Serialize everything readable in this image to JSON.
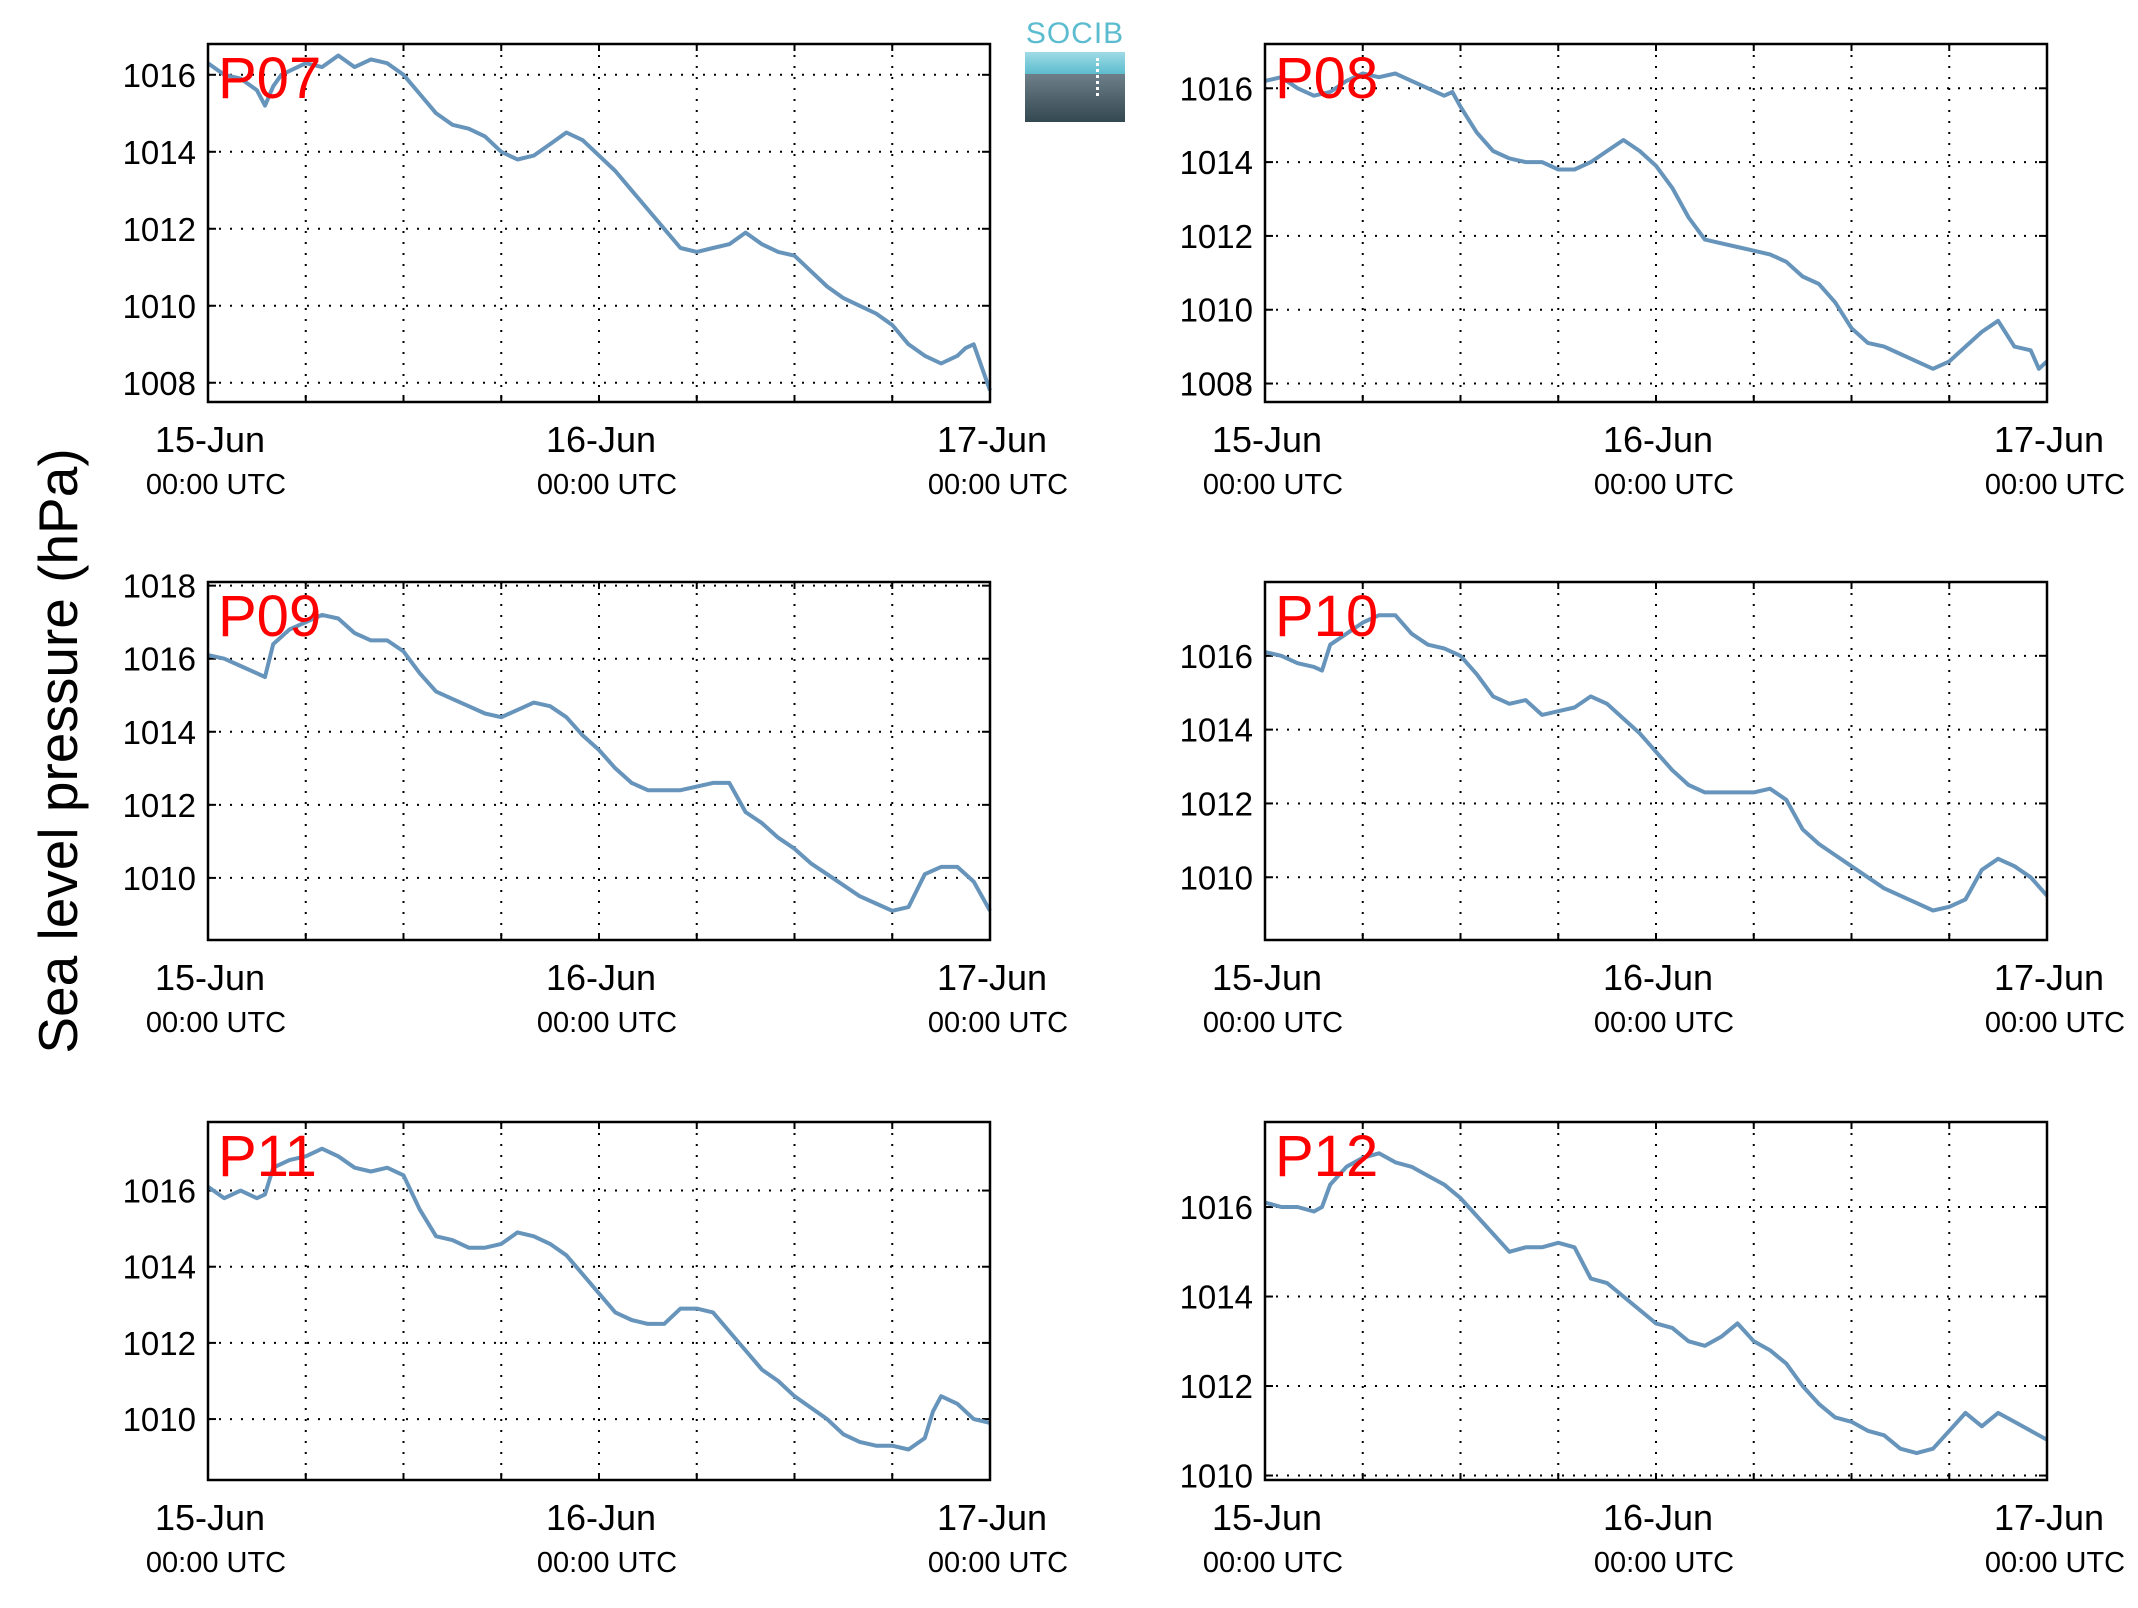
{
  "figure": {
    "ylabel": "Sea level pressure (hPa)",
    "logo_text": "SOCIB",
    "line_color": "#6794bb",
    "panel_label_color": "#ff0000"
  },
  "chart_data": [
    {
      "type": "line",
      "panel_label": "P07",
      "x_ticks": [
        {
          "line1": "15-Jun",
          "line2": "00:00 UTC"
        },
        {
          "line1": "16-Jun",
          "line2": "00:00 UTC"
        },
        {
          "line1": "17-Jun",
          "line2": "00:00 UTC"
        }
      ],
      "xlim_hours": [
        0,
        48
      ],
      "ylim": [
        1007.5,
        1016.8
      ],
      "yticks": [
        1008,
        1010,
        1012,
        1014,
        1016
      ],
      "grid": true,
      "series": [
        {
          "x_hours": [
            0,
            1,
            2,
            3,
            3.5,
            4,
            4.5,
            5,
            6,
            7,
            8,
            9,
            10,
            11,
            12,
            13,
            14,
            15,
            16,
            17,
            18,
            19,
            20,
            21,
            22,
            23,
            24,
            25,
            26,
            27,
            28,
            29,
            30,
            31,
            32,
            33,
            34,
            35,
            36,
            37,
            38,
            39,
            40,
            41,
            42,
            43,
            44,
            45,
            46,
            46.5,
            47,
            48
          ],
          "y": [
            1016.3,
            1016.0,
            1015.9,
            1015.6,
            1015.2,
            1015.7,
            1016.0,
            1016.1,
            1016.3,
            1016.2,
            1016.5,
            1016.2,
            1016.4,
            1016.3,
            1016.0,
            1015.5,
            1015.0,
            1014.7,
            1014.6,
            1014.4,
            1014.0,
            1013.8,
            1013.9,
            1014.2,
            1014.5,
            1014.3,
            1013.9,
            1013.5,
            1013.0,
            1012.5,
            1012.0,
            1011.5,
            1011.4,
            1011.5,
            1011.6,
            1011.9,
            1011.6,
            1011.4,
            1011.3,
            1010.9,
            1010.5,
            1010.2,
            1010.0,
            1009.8,
            1009.5,
            1009.0,
            1008.7,
            1008.5,
            1008.7,
            1008.9,
            1009.0,
            1007.8
          ]
        }
      ]
    },
    {
      "type": "line",
      "panel_label": "P08",
      "x_ticks": [
        {
          "line1": "15-Jun",
          "line2": "00:00 UTC"
        },
        {
          "line1": "16-Jun",
          "line2": "00:00 UTC"
        },
        {
          "line1": "17-Jun",
          "line2": "00:00 UTC"
        }
      ],
      "xlim_hours": [
        0,
        48
      ],
      "ylim": [
        1007.5,
        1017.2
      ],
      "yticks": [
        1008,
        1010,
        1012,
        1014,
        1016
      ],
      "grid": true,
      "series": [
        {
          "x_hours": [
            0,
            1,
            2,
            3,
            4,
            5,
            6,
            7,
            8,
            9,
            10,
            11,
            11.5,
            12,
            13,
            14,
            15,
            16,
            17,
            18,
            19,
            20,
            21,
            22,
            23,
            24,
            25,
            26,
            27,
            28,
            29,
            30,
            31,
            32,
            33,
            34,
            35,
            36,
            37,
            38,
            39,
            40,
            41,
            42,
            43,
            44,
            45,
            46,
            47,
            47.5,
            48
          ],
          "y": [
            1016.2,
            1016.3,
            1016.0,
            1015.8,
            1015.9,
            1016.2,
            1016.4,
            1016.3,
            1016.4,
            1016.2,
            1016.0,
            1015.8,
            1015.9,
            1015.5,
            1014.8,
            1014.3,
            1014.1,
            1014.0,
            1014.0,
            1013.8,
            1013.8,
            1014.0,
            1014.3,
            1014.6,
            1014.3,
            1013.9,
            1013.3,
            1012.5,
            1011.9,
            1011.8,
            1011.7,
            1011.6,
            1011.5,
            1011.3,
            1010.9,
            1010.7,
            1010.2,
            1009.5,
            1009.1,
            1009.0,
            1008.8,
            1008.6,
            1008.4,
            1008.6,
            1009.0,
            1009.4,
            1009.7,
            1009.0,
            1008.9,
            1008.4,
            1008.6
          ]
        }
      ]
    },
    {
      "type": "line",
      "panel_label": "P09",
      "x_ticks": [
        {
          "line1": "15-Jun",
          "line2": "00:00 UTC"
        },
        {
          "line1": "16-Jun",
          "line2": "00:00 UTC"
        },
        {
          "line1": "17-Jun",
          "line2": "00:00 UTC"
        }
      ],
      "xlim_hours": [
        0,
        48
      ],
      "ylim": [
        1008.3,
        1018.1
      ],
      "yticks": [
        1010,
        1012,
        1014,
        1016,
        1018
      ],
      "grid": true,
      "series": [
        {
          "x_hours": [
            0,
            1,
            2,
            3,
            3.5,
            4,
            5,
            6,
            7,
            8,
            9,
            10,
            11,
            12,
            13,
            14,
            15,
            16,
            17,
            18,
            19,
            20,
            21,
            22,
            23,
            24,
            25,
            26,
            27,
            28,
            29,
            30,
            31,
            32,
            33,
            34,
            35,
            36,
            37,
            38,
            39,
            40,
            41,
            42,
            43,
            44,
            45,
            46,
            47,
            48
          ],
          "y": [
            1016.1,
            1016.0,
            1015.8,
            1015.6,
            1015.5,
            1016.4,
            1016.8,
            1017.0,
            1017.2,
            1017.1,
            1016.7,
            1016.5,
            1016.5,
            1016.2,
            1015.6,
            1015.1,
            1014.9,
            1014.7,
            1014.5,
            1014.4,
            1014.6,
            1014.8,
            1014.7,
            1014.4,
            1013.9,
            1013.5,
            1013.0,
            1012.6,
            1012.4,
            1012.4,
            1012.4,
            1012.5,
            1012.6,
            1012.6,
            1011.8,
            1011.5,
            1011.1,
            1010.8,
            1010.4,
            1010.1,
            1009.8,
            1009.5,
            1009.3,
            1009.1,
            1009.2,
            1010.1,
            1010.3,
            1010.3,
            1009.9,
            1009.1
          ]
        }
      ]
    },
    {
      "type": "line",
      "panel_label": "P10",
      "x_ticks": [
        {
          "line1": "15-Jun",
          "line2": "00:00 UTC"
        },
        {
          "line1": "16-Jun",
          "line2": "00:00 UTC"
        },
        {
          "line1": "17-Jun",
          "line2": "00:00 UTC"
        }
      ],
      "xlim_hours": [
        0,
        48
      ],
      "ylim": [
        1008.3,
        1018.0
      ],
      "yticks": [
        1010,
        1012,
        1014,
        1016
      ],
      "grid": true,
      "series": [
        {
          "x_hours": [
            0,
            1,
            2,
            3,
            3.5,
            4,
            5,
            6,
            7,
            8,
            9,
            10,
            11,
            12,
            13,
            14,
            15,
            16,
            17,
            18,
            19,
            20,
            21,
            22,
            23,
            24,
            25,
            26,
            27,
            28,
            29,
            30,
            31,
            32,
            33,
            34,
            35,
            36,
            37,
            38,
            39,
            40,
            41,
            42,
            43,
            44,
            45,
            46,
            47,
            48
          ],
          "y": [
            1016.1,
            1016.0,
            1015.8,
            1015.7,
            1015.6,
            1016.3,
            1016.6,
            1016.9,
            1017.1,
            1017.1,
            1016.6,
            1016.3,
            1016.2,
            1016.0,
            1015.5,
            1014.9,
            1014.7,
            1014.8,
            1014.4,
            1014.5,
            1014.6,
            1014.9,
            1014.7,
            1014.3,
            1013.9,
            1013.4,
            1012.9,
            1012.5,
            1012.3,
            1012.3,
            1012.3,
            1012.3,
            1012.4,
            1012.1,
            1011.3,
            1010.9,
            1010.6,
            1010.3,
            1010.0,
            1009.7,
            1009.5,
            1009.3,
            1009.1,
            1009.2,
            1009.4,
            1010.2,
            1010.5,
            1010.3,
            1010.0,
            1009.5
          ]
        }
      ]
    },
    {
      "type": "line",
      "panel_label": "P11",
      "x_ticks": [
        {
          "line1": "15-Jun",
          "line2": "00:00 UTC"
        },
        {
          "line1": "16-Jun",
          "line2": "00:00 UTC"
        },
        {
          "line1": "17-Jun",
          "line2": "00:00 UTC"
        }
      ],
      "xlim_hours": [
        0,
        48
      ],
      "ylim": [
        1008.4,
        1017.8
      ],
      "yticks": [
        1010,
        1012,
        1014,
        1016
      ],
      "grid": true,
      "series": [
        {
          "x_hours": [
            0,
            1,
            2,
            3,
            3.5,
            4,
            5,
            6,
            7,
            8,
            9,
            10,
            11,
            12,
            13,
            14,
            15,
            16,
            17,
            18,
            19,
            20,
            21,
            22,
            23,
            24,
            25,
            26,
            27,
            28,
            29,
            30,
            31,
            32,
            33,
            34,
            35,
            36,
            37,
            38,
            39,
            40,
            41,
            42,
            43,
            44,
            44.5,
            45,
            46,
            47,
            48
          ],
          "y": [
            1016.1,
            1015.8,
            1016.0,
            1015.8,
            1015.9,
            1016.6,
            1016.8,
            1016.9,
            1017.1,
            1016.9,
            1016.6,
            1016.5,
            1016.6,
            1016.4,
            1015.5,
            1014.8,
            1014.7,
            1014.5,
            1014.5,
            1014.6,
            1014.9,
            1014.8,
            1014.6,
            1014.3,
            1013.8,
            1013.3,
            1012.8,
            1012.6,
            1012.5,
            1012.5,
            1012.9,
            1012.9,
            1012.8,
            1012.3,
            1011.8,
            1011.3,
            1011.0,
            1010.6,
            1010.3,
            1010.0,
            1009.6,
            1009.4,
            1009.3,
            1009.3,
            1009.2,
            1009.5,
            1010.2,
            1010.6,
            1010.4,
            1010.0,
            1009.9
          ]
        }
      ]
    },
    {
      "type": "line",
      "panel_label": "P12",
      "x_ticks": [
        {
          "line1": "15-Jun",
          "line2": "00:00 UTC"
        },
        {
          "line1": "16-Jun",
          "line2": "00:00 UTC"
        },
        {
          "line1": "17-Jun",
          "line2": "00:00 UTC"
        }
      ],
      "xlim_hours": [
        0,
        48
      ],
      "ylim": [
        1009.9,
        1017.9
      ],
      "yticks": [
        1010,
        1012,
        1014,
        1016
      ],
      "grid": true,
      "series": [
        {
          "x_hours": [
            0,
            1,
            2,
            3,
            3.5,
            4,
            5,
            6,
            7,
            8,
            9,
            10,
            11,
            12,
            13,
            14,
            15,
            16,
            17,
            18,
            19,
            20,
            21,
            22,
            23,
            24,
            25,
            26,
            27,
            28,
            29,
            30,
            31,
            32,
            33,
            34,
            35,
            36,
            37,
            38,
            39,
            40,
            41,
            42,
            43,
            44,
            45,
            46,
            47,
            48
          ],
          "y": [
            1016.1,
            1016.0,
            1016.0,
            1015.9,
            1016.0,
            1016.5,
            1016.9,
            1017.1,
            1017.2,
            1017.0,
            1016.9,
            1016.7,
            1016.5,
            1016.2,
            1015.8,
            1015.4,
            1015.0,
            1015.1,
            1015.1,
            1015.2,
            1015.1,
            1014.4,
            1014.3,
            1014.0,
            1013.7,
            1013.4,
            1013.3,
            1013.0,
            1012.9,
            1013.1,
            1013.4,
            1013.0,
            1012.8,
            1012.5,
            1012.0,
            1011.6,
            1011.3,
            1011.2,
            1011.0,
            1010.9,
            1010.6,
            1010.5,
            1010.6,
            1011.0,
            1011.4,
            1011.1,
            1011.4,
            1011.2,
            1011.0,
            1010.8
          ]
        }
      ]
    }
  ]
}
